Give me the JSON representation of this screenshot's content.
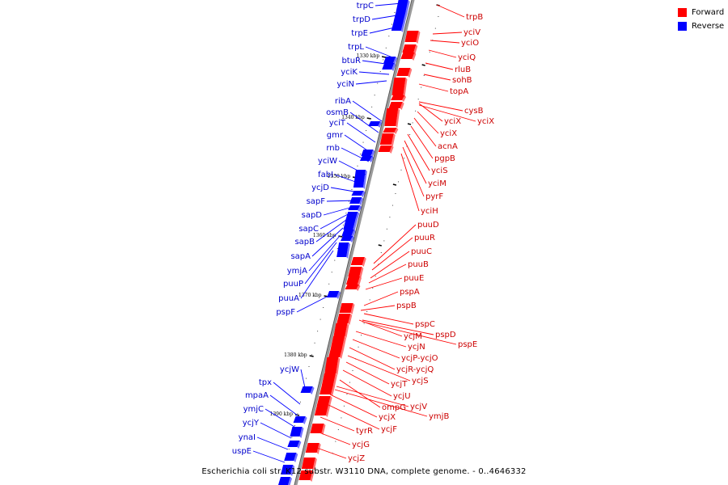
{
  "caption": "Escherichia coli str. K12 substr. W3110 DNA, complete genome. - 0..4646332",
  "legend": [
    {
      "label": "Forward",
      "color": "#ff0000"
    },
    {
      "label": "Reverse",
      "color": "#0000ff"
    }
  ],
  "colors": {
    "forward": "#ff0000",
    "reverse": "#0000ff",
    "backbone": "#9a9a9a",
    "text_forward": "#cc0000",
    "text_reverse": "#0000cc"
  },
  "ticks": [
    "1330 kbp",
    "1340 kbp",
    "1350 kbp",
    "1360 kbp",
    "1370 kbp",
    "1380 kbp",
    "1390 kbp"
  ],
  "reverse_genes": [
    "trpC",
    "trpD",
    "trpE",
    "trpL",
    "btuR",
    "yciK",
    "yciN",
    "ribA",
    "osmB",
    "yciT",
    "gmr",
    "rnb",
    "yciW",
    "fabI",
    "ycjD",
    "sapF",
    "sapD",
    "sapC",
    "sapB",
    "sapA",
    "ymjA",
    "puuP",
    "puuA",
    "pspF",
    "ycjW",
    "tpx",
    "mpaA",
    "ymjC",
    "ycjY",
    "ynaI",
    "uspE"
  ],
  "forward_genes": [
    "trpB",
    "yciV",
    "yciO",
    "yciQ",
    "rluB",
    "sohB",
    "topA",
    "cysB",
    "yciX",
    "yciX",
    "yciX",
    "acnA",
    "pgpB",
    "yciS",
    "yciM",
    "pyrF",
    "yciH",
    "puuD",
    "puuR",
    "puuC",
    "puuB",
    "puuE",
    "pspA",
    "pspB",
    "pspC",
    "ycjM",
    "pspD",
    "pspE",
    "ycjN",
    "ycjP-ycjO",
    "ycjR-ycjQ",
    "ycjS",
    "ycjT",
    "ycjU",
    "ompG",
    "ycjV",
    "ymjB",
    "ycjX",
    "ycjF",
    "tyrR",
    "ycjG",
    "ycjZ"
  ]
}
